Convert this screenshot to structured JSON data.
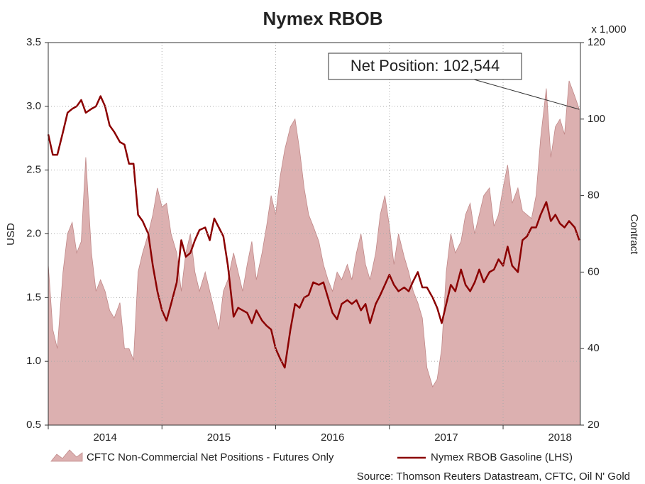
{
  "chart_data": {
    "type": "line",
    "title": "Nymex RBOB",
    "x": [
      2014.0,
      2014.04,
      2014.08,
      2014.13,
      2014.17,
      2014.21,
      2014.25,
      2014.29,
      2014.33,
      2014.38,
      2014.42,
      2014.46,
      2014.5,
      2014.54,
      2014.58,
      2014.63,
      2014.67,
      2014.71,
      2014.75,
      2014.79,
      2014.83,
      2014.88,
      2014.92,
      2014.96,
      2015.0,
      2015.04,
      2015.08,
      2015.13,
      2015.17,
      2015.21,
      2015.25,
      2015.29,
      2015.33,
      2015.38,
      2015.42,
      2015.46,
      2015.5,
      2015.54,
      2015.58,
      2015.63,
      2015.67,
      2015.71,
      2015.75,
      2015.79,
      2015.83,
      2015.88,
      2015.92,
      2015.96,
      2016.0,
      2016.04,
      2016.08,
      2016.13,
      2016.17,
      2016.21,
      2016.25,
      2016.29,
      2016.33,
      2016.38,
      2016.42,
      2016.46,
      2016.5,
      2016.54,
      2016.58,
      2016.63,
      2016.67,
      2016.71,
      2016.75,
      2016.79,
      2016.83,
      2016.88,
      2016.92,
      2016.96,
      2017.0,
      2017.04,
      2017.08,
      2017.13,
      2017.17,
      2017.21,
      2017.25,
      2017.29,
      2017.33,
      2017.38,
      2017.42,
      2017.46,
      2017.5,
      2017.54,
      2017.58,
      2017.63,
      2017.67,
      2017.71,
      2017.75,
      2017.79,
      2017.83,
      2017.88,
      2017.92,
      2017.96,
      2018.0,
      2018.04,
      2018.08,
      2018.13,
      2018.17,
      2018.21,
      2018.25,
      2018.29,
      2018.33,
      2018.38,
      2018.42,
      2018.46,
      2018.5,
      2018.54,
      2018.58,
      2018.63,
      2018.67
    ],
    "series": [
      {
        "name": "CFTC Non-Commercial Net Positions - Futures Only",
        "kind": "area",
        "axis": "y2",
        "color": "#dcb0b0",
        "edge": "#c08888",
        "values": [
          62,
          45,
          40,
          60,
          70,
          73,
          65,
          68,
          90,
          65,
          55,
          58,
          55,
          50,
          48,
          52,
          40,
          40,
          37,
          60,
          65,
          70,
          75,
          82,
          77,
          78,
          70,
          65,
          55,
          65,
          70,
          60,
          55,
          60,
          55,
          50,
          45,
          55,
          58,
          65,
          60,
          55,
          62,
          68,
          58,
          65,
          72,
          80,
          75,
          85,
          92,
          98,
          100,
          92,
          82,
          75,
          72,
          68,
          62,
          58,
          55,
          60,
          58,
          62,
          58,
          65,
          70,
          62,
          58,
          65,
          75,
          80,
          72,
          62,
          70,
          64,
          60,
          55,
          52,
          48,
          35,
          30,
          32,
          40,
          60,
          70,
          65,
          68,
          75,
          78,
          70,
          75,
          80,
          82,
          72,
          75,
          82,
          88,
          78,
          82,
          76,
          75,
          74,
          80,
          95,
          108,
          90,
          98,
          100,
          96,
          110,
          106,
          102.544
        ]
      },
      {
        "name": "Nymex RBOB Gasoline (LHS)",
        "kind": "line",
        "axis": "y",
        "color": "#8b0000",
        "values": [
          2.78,
          2.62,
          2.62,
          2.8,
          2.95,
          2.98,
          3.0,
          3.05,
          2.95,
          2.98,
          3.0,
          3.08,
          3.0,
          2.85,
          2.8,
          2.72,
          2.7,
          2.55,
          2.55,
          2.15,
          2.1,
          2.0,
          1.75,
          1.55,
          1.4,
          1.32,
          1.45,
          1.62,
          1.95,
          1.82,
          1.85,
          1.95,
          2.03,
          2.05,
          1.95,
          2.12,
          2.05,
          1.98,
          1.75,
          1.35,
          1.42,
          1.4,
          1.38,
          1.3,
          1.4,
          1.32,
          1.28,
          1.25,
          1.1,
          1.02,
          0.95,
          1.25,
          1.45,
          1.42,
          1.5,
          1.52,
          1.62,
          1.6,
          1.62,
          1.5,
          1.38,
          1.33,
          1.45,
          1.48,
          1.45,
          1.48,
          1.4,
          1.45,
          1.3,
          1.45,
          1.52,
          1.6,
          1.68,
          1.6,
          1.55,
          1.58,
          1.55,
          1.63,
          1.7,
          1.58,
          1.58,
          1.5,
          1.42,
          1.3,
          1.45,
          1.6,
          1.55,
          1.72,
          1.6,
          1.55,
          1.62,
          1.72,
          1.62,
          1.7,
          1.72,
          1.8,
          1.75,
          1.9,
          1.75,
          1.7,
          1.95,
          1.98,
          2.05,
          2.05,
          2.15,
          2.25,
          2.1,
          2.15,
          2.08,
          2.05,
          2.1,
          2.05,
          1.95
        ]
      }
    ],
    "xlim": [
      2014,
      2018.68
    ],
    "xticks": [
      {
        "value": 2014.5,
        "label": "2014"
      },
      {
        "value": 2015.5,
        "label": "2015"
      },
      {
        "value": 2016.5,
        "label": "2016"
      },
      {
        "value": 2017.5,
        "label": "2017"
      },
      {
        "value": 2018.5,
        "label": "2018"
      }
    ],
    "ylim": [
      0.5,
      3.5
    ],
    "yticks": [
      0.5,
      {
        "value": 1,
        "label": "1.0"
      },
      1.5,
      {
        "value": 2,
        "label": "2.0"
      },
      2.5,
      {
        "value": 3,
        "label": "3.0"
      },
      3.5
    ],
    "y2lim": [
      20,
      120
    ],
    "y2ticks": [
      20,
      40,
      60,
      80,
      100,
      120
    ],
    "y_label": "USD",
    "y2_label": "Contract",
    "y2_unit": "x 1,000",
    "annotation": "Net Position: 102,544",
    "source": "Source: Thomson Reuters Datastream, CFTC, Oil N' Gold",
    "grid": true
  }
}
